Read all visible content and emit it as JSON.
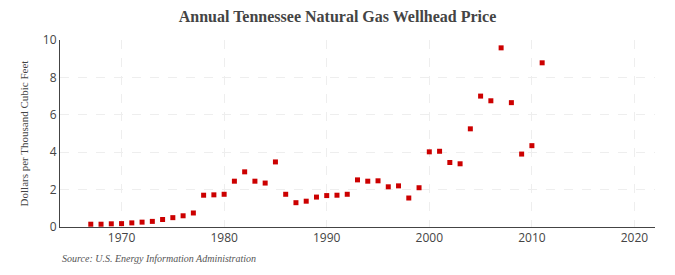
{
  "chart_data": {
    "type": "scatter",
    "title": "Annual Tennessee Natural Gas Wellhead Price",
    "y_label": "Dollars per Thousand Cubic Feet",
    "annotations": [
      "Source: U.S. Energy Information Administration"
    ],
    "x": [
      1967,
      1968,
      1969,
      1970,
      1971,
      1972,
      1973,
      1974,
      1975,
      1976,
      1977,
      1978,
      1979,
      1980,
      1981,
      1982,
      1983,
      1984,
      1985,
      1986,
      1987,
      1988,
      1989,
      1990,
      1991,
      1992,
      1993,
      1994,
      1995,
      1996,
      1997,
      1998,
      1999,
      2000,
      2001,
      2002,
      2003,
      2004,
      2005,
      2006,
      2007,
      2008,
      2009,
      2010,
      2011
    ],
    "values": [
      0.15,
      0.15,
      0.17,
      0.18,
      0.22,
      0.26,
      0.3,
      0.4,
      0.5,
      0.6,
      0.75,
      1.7,
      1.72,
      1.75,
      2.45,
      2.95,
      2.45,
      2.35,
      3.48,
      1.75,
      1.3,
      1.38,
      1.6,
      1.68,
      1.7,
      1.75,
      2.52,
      2.45,
      2.47,
      2.15,
      2.2,
      1.55,
      2.1,
      4.02,
      4.05,
      3.45,
      3.38,
      5.25,
      7.0,
      6.75,
      9.58,
      6.65,
      3.9,
      4.35,
      8.78
    ],
    "color": "#cc0000",
    "marker": "square",
    "xlim": [
      1964,
      2022
    ],
    "ylim": [
      0,
      10
    ],
    "xticks": [
      1970,
      1980,
      1990,
      2000,
      2010,
      2020
    ],
    "yticks": [
      0,
      2,
      4,
      6,
      8,
      10
    ],
    "grid": true
  }
}
